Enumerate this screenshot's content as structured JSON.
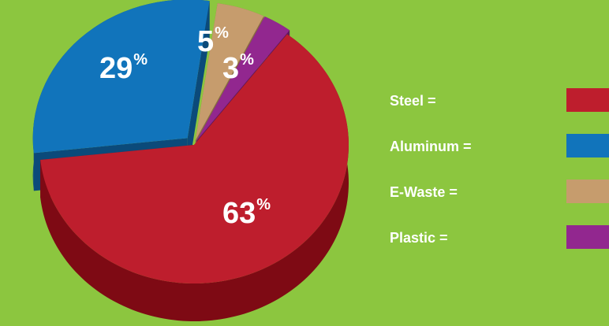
{
  "chart_data": {
    "type": "pie",
    "categories": [
      "Steel",
      "Aluminum",
      "E-Waste",
      "Plastic"
    ],
    "values": [
      63,
      29,
      5,
      3
    ],
    "colors": [
      "#be1e2d",
      "#1174bb",
      "#c69c6d",
      "#92278f"
    ],
    "side_colors": [
      "#7e0a14",
      "#0b4a7a",
      "#8a6a45",
      "#5e1a5c"
    ],
    "data_labels": [
      "63",
      "29",
      "5",
      "3"
    ],
    "percent_symbol": "%",
    "legend": {
      "placement": "right",
      "entries": [
        {
          "label": "Steel =",
          "color": "#be1e2d"
        },
        {
          "label": "Aluminum =",
          "color": "#1174bb"
        },
        {
          "label": "E-Waste =",
          "color": "#c69c6d"
        },
        {
          "label": "Plastic =",
          "color": "#92278f"
        }
      ]
    },
    "style": "3d-exploded-tilted"
  }
}
